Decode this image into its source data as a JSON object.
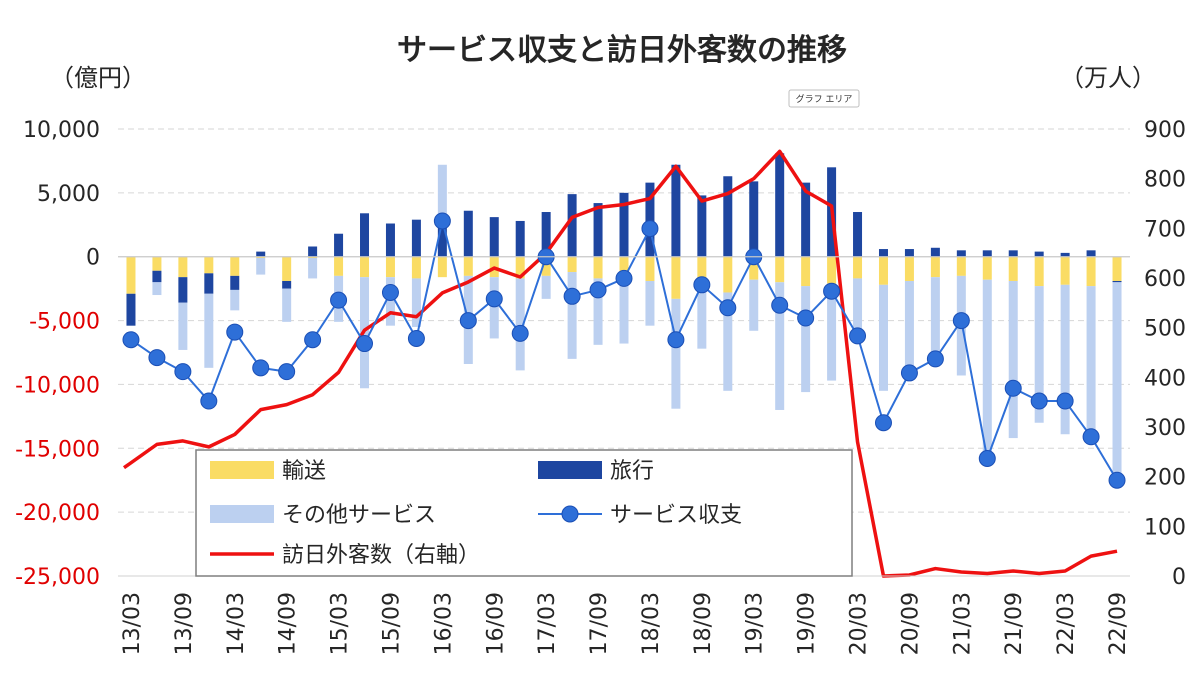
{
  "chart_data": {
    "type": "bar",
    "title": "サービス収支と訪日外客数の推移",
    "left_unit": "（億円）",
    "right_unit": "（万人）",
    "tooltip": "グラフ エリア",
    "y_left": {
      "min": -25000,
      "max": 10000,
      "ticks": [
        10000,
        5000,
        0,
        -5000,
        -10000,
        -15000,
        -20000,
        -25000
      ],
      "tick_labels": [
        "10,000",
        "5,000",
        "0",
        "-5,000",
        "-10,000",
        "-15,000",
        "-20,000",
        "-25,000"
      ]
    },
    "y_right": {
      "min": 0,
      "max": 900,
      "ticks": [
        900,
        800,
        700,
        600,
        500,
        400,
        300,
        200,
        100,
        0
      ],
      "tick_labels": [
        "900",
        "800",
        "700",
        "600",
        "500",
        "400",
        "300",
        "200",
        "100",
        "0"
      ]
    },
    "colors": {
      "transport": "#fadc64",
      "travel": "#1e46a0",
      "other": "#bcd0f0",
      "service": "#2e6fd8",
      "visitors": "#ee1111",
      "neg_tick": "#e00000"
    },
    "x_tick_labels": [
      "13/03",
      "13/09",
      "14/03",
      "14/09",
      "15/03",
      "15/09",
      "16/03",
      "16/09",
      "17/03",
      "17/09",
      "18/03",
      "18/09",
      "19/03",
      "19/09",
      "20/03",
      "20/09",
      "21/03",
      "21/09",
      "22/03",
      "22/09"
    ],
    "x_tick_every": 2,
    "categories": [
      "13/03",
      "13/06",
      "13/09",
      "13/12",
      "14/03",
      "14/06",
      "14/09",
      "14/12",
      "15/03",
      "15/06",
      "15/09",
      "15/12",
      "16/03",
      "16/06",
      "16/09",
      "16/12",
      "17/03",
      "17/06",
      "17/09",
      "17/12",
      "18/03",
      "18/06",
      "18/09",
      "18/12",
      "19/03",
      "19/06",
      "19/09",
      "19/12",
      "20/03",
      "20/06",
      "20/09",
      "20/12",
      "21/03",
      "21/06",
      "21/09",
      "21/12",
      "22/03",
      "22/06",
      "22/09"
    ],
    "legend": [
      {
        "key": "transport",
        "label": "輸送"
      },
      {
        "key": "travel",
        "label": "旅行"
      },
      {
        "key": "other",
        "label": "その他サービス"
      },
      {
        "key": "service",
        "label": "サービス収支"
      },
      {
        "key": "visitors",
        "label": "訪日外客数（右軸）"
      }
    ],
    "series": [
      {
        "key": "transport",
        "name": "輸送",
        "axis": "left",
        "kind": "stacked-bar",
        "values": [
          -2900,
          -1100,
          -1600,
          -1300,
          -1500,
          -100,
          -1900,
          -100,
          -1500,
          -1600,
          -1600,
          -1700,
          -1600,
          -1500,
          -1600,
          -1700,
          -1500,
          -1200,
          -1700,
          -1200,
          -1900,
          -3300,
          -2200,
          -2800,
          -1800,
          -2000,
          -2300,
          -2100,
          -1700,
          -2200,
          -1900,
          -1600,
          -1500,
          -1800,
          -1900,
          -2300,
          -2200,
          -2300,
          -1900
        ]
      },
      {
        "key": "travel",
        "name": "旅行",
        "axis": "left",
        "kind": "stacked-bar",
        "values": [
          -2500,
          -900,
          -2000,
          -1600,
          -1100,
          400,
          -600,
          800,
          1800,
          3400,
          2600,
          2900,
          2900,
          3600,
          3100,
          2800,
          3500,
          4900,
          4200,
          5000,
          5800,
          7200,
          4800,
          6300,
          5900,
          8100,
          5800,
          7000,
          3500,
          600,
          600,
          700,
          500,
          500,
          500,
          400,
          300,
          500,
          -100
        ]
      },
      {
        "key": "other",
        "name": "その他サービス",
        "axis": "left",
        "kind": "stacked-bar",
        "values": [
          0,
          -1000,
          -3700,
          -5800,
          -1600,
          -1300,
          -2600,
          -1600,
          -3600,
          -8700,
          -3800,
          -3800,
          4300,
          -6900,
          -4800,
          -7200,
          -1800,
          -6800,
          -5200,
          -5600,
          -3500,
          -8600,
          -5000,
          -7700,
          -4000,
          -10000,
          -8300,
          -7600,
          -4600,
          -8300,
          -6800,
          -7000,
          -7800,
          -14000,
          -12300,
          -10700,
          -11700,
          -11900,
          -15500
        ]
      },
      {
        "key": "service",
        "name": "サービス収支",
        "axis": "left",
        "kind": "line-marker",
        "values": [
          -6500,
          -7900,
          -9000,
          -11300,
          -5900,
          -8700,
          -9000,
          -6500,
          -3400,
          -6800,
          -2800,
          -6400,
          2800,
          -5000,
          -3300,
          -6000,
          0,
          -3100,
          -2600,
          -1700,
          2200,
          -6500,
          -2200,
          -4000,
          0,
          -3800,
          -4800,
          -2700,
          -6200,
          -13000,
          -9100,
          -8000,
          -5000,
          -15800,
          -10300,
          -11300,
          -11300,
          -14100,
          -17500
        ]
      },
      {
        "key": "visitors",
        "name": "訪日外客数（右軸）",
        "axis": "right",
        "kind": "line",
        "values": [
          218,
          265,
          272,
          260,
          285,
          335,
          345,
          365,
          410,
          495,
          530,
          522,
          570,
          592,
          620,
          602,
          650,
          722,
          742,
          748,
          760,
          825,
          755,
          770,
          800,
          855,
          775,
          745,
          270,
          0,
          2,
          15,
          8,
          5,
          10,
          5,
          10,
          40,
          50
        ]
      }
    ]
  }
}
